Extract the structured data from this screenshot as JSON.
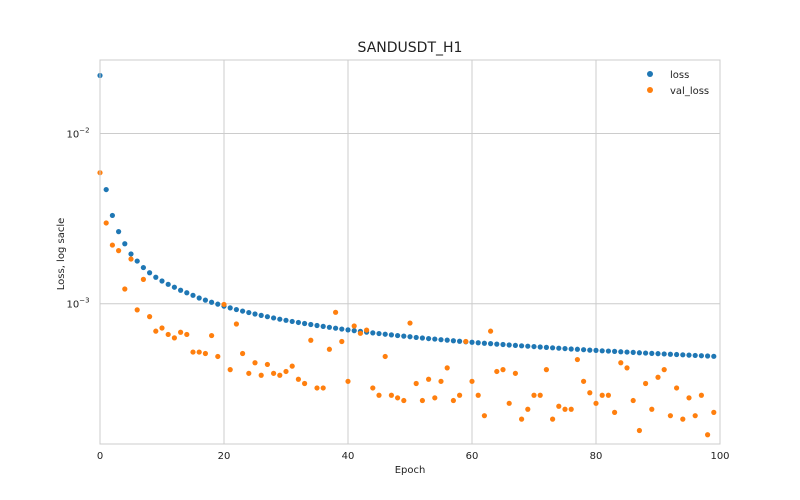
{
  "chart_data": {
    "type": "scatter",
    "title": "SANDUSDT_H1",
    "xlabel": "Epoch",
    "ylabel": "Loss, log sacle",
    "xlim": [
      0,
      100
    ],
    "ylim": [
      0.00015,
      0.027
    ],
    "yscale": "log",
    "grid": true,
    "legend_position": "top-right",
    "x_ticks": [
      {
        "value": 0,
        "label": "0"
      },
      {
        "value": 20,
        "label": "20"
      },
      {
        "value": 40,
        "label": "40"
      },
      {
        "value": 60,
        "label": "60"
      },
      {
        "value": 80,
        "label": "80"
      },
      {
        "value": 100,
        "label": "100"
      }
    ],
    "y_ticks": [
      {
        "value": 0.001,
        "base": "10",
        "exp": "−3"
      },
      {
        "value": 0.01,
        "base": "10",
        "exp": "−2"
      }
    ],
    "series": [
      {
        "name": "loss",
        "color": "#1f77b4",
        "x": [
          0,
          1,
          2,
          3,
          4,
          5,
          6,
          7,
          8,
          9,
          10,
          11,
          12,
          13,
          14,
          15,
          16,
          17,
          18,
          19,
          20,
          21,
          22,
          23,
          24,
          25,
          26,
          27,
          28,
          29,
          30,
          31,
          32,
          33,
          34,
          35,
          36,
          37,
          38,
          39,
          40,
          41,
          42,
          43,
          44,
          45,
          46,
          47,
          48,
          49,
          50,
          51,
          52,
          53,
          54,
          55,
          56,
          57,
          58,
          59,
          60,
          61,
          62,
          63,
          64,
          65,
          66,
          67,
          68,
          69,
          70,
          71,
          72,
          73,
          74,
          75,
          76,
          77,
          78,
          79,
          80,
          81,
          82,
          83,
          84,
          85,
          86,
          87,
          88,
          89,
          90,
          91,
          92,
          93,
          94,
          95,
          96,
          97,
          98,
          99
        ],
        "values": [
          0.0219,
          0.00468,
          0.0033,
          0.00265,
          0.00225,
          0.00196,
          0.00178,
          0.00163,
          0.00152,
          0.00143,
          0.00136,
          0.0013,
          0.00125,
          0.0012,
          0.00116,
          0.00112,
          0.00108,
          0.00105,
          0.00102,
          0.000994,
          0.000968,
          0.000945,
          0.000924,
          0.000905,
          0.000887,
          0.00087,
          0.000854,
          0.000839,
          0.000825,
          0.000811,
          0.000799,
          0.000787,
          0.000776,
          0.000765,
          0.000755,
          0.000745,
          0.000736,
          0.000727,
          0.000718,
          0.00071,
          0.000702,
          0.000695,
          0.000688,
          0.000681,
          0.000674,
          0.000668,
          0.000662,
          0.000656,
          0.00065,
          0.000645,
          0.00064,
          0.000634,
          0.000629,
          0.000624,
          0.00062,
          0.000615,
          0.000611,
          0.000606,
          0.000602,
          0.000598,
          0.000594,
          0.00059,
          0.000586,
          0.000583,
          0.000579,
          0.000576,
          0.000572,
          0.000569,
          0.000566,
          0.000563,
          0.00056,
          0.000557,
          0.000554,
          0.000551,
          0.000548,
          0.000545,
          0.000542,
          0.00054,
          0.000537,
          0.000534,
          0.000532,
          0.000529,
          0.000527,
          0.000525,
          0.000522,
          0.00052,
          0.000518,
          0.000515,
          0.000513,
          0.000511,
          0.000509,
          0.000507,
          0.000505,
          0.000503,
          0.000501,
          0.000499,
          0.000497,
          0.000495,
          0.000493,
          0.000491
        ]
      },
      {
        "name": "val_loss",
        "color": "#ff7f0e",
        "x": [
          0,
          1,
          2,
          3,
          4,
          5,
          6,
          7,
          8,
          9,
          10,
          11,
          12,
          13,
          14,
          15,
          16,
          17,
          18,
          19,
          20,
          21,
          22,
          23,
          24,
          25,
          26,
          27,
          28,
          29,
          30,
          31,
          32,
          33,
          34,
          35,
          36,
          37,
          38,
          39,
          40,
          41,
          42,
          43,
          44,
          45,
          46,
          47,
          48,
          49,
          50,
          51,
          52,
          53,
          54,
          55,
          56,
          57,
          58,
          59,
          60,
          61,
          62,
          63,
          64,
          65,
          66,
          67,
          68,
          69,
          70,
          71,
          72,
          73,
          74,
          75,
          76,
          77,
          78,
          79,
          80,
          81,
          82,
          83,
          84,
          85,
          86,
          87,
          88,
          89,
          90,
          91,
          92,
          93,
          94,
          95,
          96,
          97,
          98,
          99
        ],
        "values": [
          0.00588,
          0.00298,
          0.00221,
          0.00205,
          0.00122,
          0.00183,
          0.00092,
          0.00139,
          0.00084,
          0.00069,
          0.00072,
          0.00066,
          0.00063,
          0.00068,
          0.00066,
          0.00052,
          0.00052,
          0.00051,
          0.00065,
          0.00049,
          0.00099,
          0.00041,
          0.00076,
          0.00051,
          0.00039,
          0.00045,
          0.00038,
          0.00044,
          0.00039,
          0.00038,
          0.0004,
          0.00043,
          0.00036,
          0.00034,
          0.00061,
          0.00032,
          0.00032,
          0.00054,
          0.00089,
          0.0006,
          0.00035,
          0.00074,
          0.00067,
          0.0007,
          0.00032,
          0.00029,
          0.00049,
          0.00029,
          0.00028,
          0.00027,
          0.00077,
          0.00034,
          0.00027,
          0.00036,
          0.00028,
          0.00035,
          0.00042,
          0.00027,
          0.00029,
          0.0006,
          0.00035,
          0.00029,
          0.00022,
          0.00069,
          0.0004,
          0.00041,
          0.00026,
          0.00039,
          0.00021,
          0.00024,
          0.00029,
          0.00029,
          0.00041,
          0.00021,
          0.00025,
          0.00024,
          0.00024,
          0.00047,
          0.00035,
          0.0003,
          0.00026,
          0.00029,
          0.00029,
          0.00023,
          0.00045,
          0.00042,
          0.00027,
          0.00018,
          0.00034,
          0.00024,
          0.00037,
          0.00041,
          0.00022,
          0.00032,
          0.00021,
          0.00028,
          0.00022,
          0.00029,
          0.00017,
          0.00023
        ]
      }
    ]
  }
}
